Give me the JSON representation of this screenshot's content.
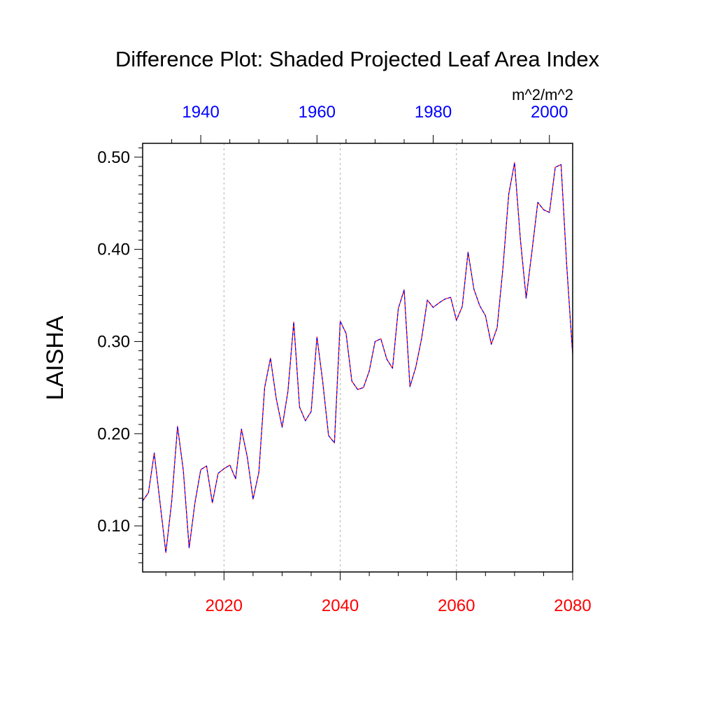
{
  "chart_data": {
    "type": "line",
    "title": "Difference Plot: Shaded Projected Leaf Area Index",
    "ylabel": "LAISHA",
    "units": "m^2/m^2",
    "ylim": [
      0.05,
      0.515
    ],
    "yticks": [
      {
        "value": 0.1,
        "label": "0.10"
      },
      {
        "value": 0.2,
        "label": "0.20"
      },
      {
        "value": 0.3,
        "label": "0.30"
      },
      {
        "value": 0.4,
        "label": "0.40"
      },
      {
        "value": 0.5,
        "label": "0.50"
      }
    ],
    "x_bottom": {
      "xlim": [
        2006,
        2080
      ],
      "ticks": [
        {
          "value": 2020,
          "label": "2020"
        },
        {
          "value": 2040,
          "label": "2040"
        },
        {
          "value": 2060,
          "label": "2060"
        },
        {
          "value": 2080,
          "label": "2080"
        }
      ],
      "color": "#ff0000"
    },
    "x_top": {
      "xlim": [
        1930,
        2004
      ],
      "ticks": [
        {
          "value": 1940,
          "label": "1940"
        },
        {
          "value": 1960,
          "label": "1960"
        },
        {
          "value": 1980,
          "label": "1980"
        },
        {
          "value": 2000,
          "label": "2000"
        }
      ],
      "color": "#0000ff"
    },
    "grid": "vertical dotted at major bottom ticks",
    "series": [
      {
        "color": "#ff0000",
        "x": [
          2006,
          2007,
          2008,
          2009,
          2010,
          2011,
          2012,
          2013,
          2014,
          2015,
          2016,
          2017,
          2018,
          2019,
          2020,
          2021,
          2022,
          2023,
          2024,
          2025,
          2026,
          2027,
          2028,
          2029,
          2030,
          2031,
          2032,
          2033,
          2034,
          2035,
          2036,
          2037,
          2038,
          2039,
          2040,
          2041,
          2042,
          2043,
          2044,
          2045,
          2046,
          2047,
          2048,
          2049,
          2050,
          2051,
          2052,
          2053,
          2054,
          2055,
          2056,
          2057,
          2058,
          2059,
          2060,
          2061,
          2062,
          2063,
          2064,
          2065,
          2066,
          2067,
          2068,
          2069,
          2070,
          2071,
          2072,
          2073,
          2074,
          2075,
          2076,
          2077,
          2078,
          2079,
          2080
        ],
        "values": [
          0.127,
          0.136,
          0.179,
          0.125,
          0.071,
          0.127,
          0.208,
          0.16,
          0.076,
          0.125,
          0.161,
          0.165,
          0.125,
          0.157,
          0.162,
          0.166,
          0.151,
          0.205,
          0.175,
          0.129,
          0.158,
          0.25,
          0.282,
          0.238,
          0.207,
          0.246,
          0.321,
          0.229,
          0.214,
          0.224,
          0.305,
          0.256,
          0.198,
          0.19,
          0.322,
          0.309,
          0.257,
          0.248,
          0.25,
          0.268,
          0.3,
          0.303,
          0.281,
          0.271,
          0.336,
          0.356,
          0.251,
          0.272,
          0.303,
          0.345,
          0.337,
          0.342,
          0.346,
          0.348,
          0.323,
          0.338,
          0.397,
          0.357,
          0.339,
          0.328,
          0.297,
          0.315,
          0.38,
          0.46,
          0.494,
          0.411,
          0.347,
          0.398,
          0.451,
          0.443,
          0.44,
          0.489,
          0.492,
          0.38,
          0.286
        ]
      },
      {
        "color": "#0000ff",
        "x": [
          2006,
          2007,
          2008,
          2009,
          2010,
          2011,
          2012,
          2013,
          2014,
          2015,
          2016,
          2017,
          2018,
          2019,
          2020,
          2021,
          2022,
          2023,
          2024,
          2025,
          2026,
          2027,
          2028,
          2029,
          2030,
          2031,
          2032,
          2033,
          2034,
          2035,
          2036,
          2037,
          2038,
          2039,
          2040,
          2041,
          2042,
          2043,
          2044,
          2045,
          2046,
          2047,
          2048,
          2049,
          2050,
          2051,
          2052,
          2053,
          2054,
          2055,
          2056,
          2057,
          2058,
          2059,
          2060,
          2061,
          2062,
          2063,
          2064,
          2065,
          2066,
          2067,
          2068,
          2069,
          2070,
          2071,
          2072,
          2073,
          2074,
          2075,
          2076,
          2077,
          2078,
          2079,
          2080
        ],
        "values": [
          0.127,
          0.136,
          0.179,
          0.125,
          0.071,
          0.127,
          0.208,
          0.16,
          0.076,
          0.125,
          0.161,
          0.165,
          0.125,
          0.157,
          0.162,
          0.166,
          0.151,
          0.205,
          0.175,
          0.129,
          0.158,
          0.25,
          0.282,
          0.238,
          0.207,
          0.246,
          0.321,
          0.229,
          0.214,
          0.224,
          0.305,
          0.256,
          0.198,
          0.19,
          0.322,
          0.309,
          0.257,
          0.248,
          0.25,
          0.268,
          0.3,
          0.303,
          0.281,
          0.271,
          0.336,
          0.356,
          0.251,
          0.272,
          0.303,
          0.345,
          0.337,
          0.342,
          0.346,
          0.348,
          0.323,
          0.338,
          0.397,
          0.357,
          0.339,
          0.328,
          0.297,
          0.315,
          0.38,
          0.46,
          0.494,
          0.411,
          0.347,
          0.398,
          0.451,
          0.443,
          0.44,
          0.489,
          0.492,
          0.38,
          0.286
        ]
      }
    ]
  }
}
